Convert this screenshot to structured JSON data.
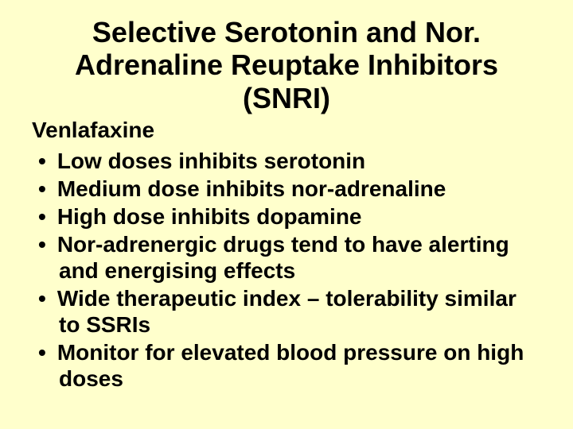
{
  "slide": {
    "background_color": "#ffffcc",
    "text_color": "#000000",
    "font_family": "Arial",
    "title": "Selective Serotonin and Nor. Adrenaline Reuptake Inhibitors (SNRI)",
    "title_fontsize": 36,
    "subtitle": "Venlafaxine",
    "subtitle_fontsize": 28,
    "bullet_fontsize": 28,
    "bullets": [
      "Low doses inhibits serotonin",
      "Medium dose inhibits nor-adrenaline",
      "High dose inhibits dopamine",
      "Nor-adrenergic drugs tend to have alerting and energising effects",
      "Wide therapeutic index – tolerability similar to SSRIs",
      "Monitor for elevated blood pressure on high doses"
    ]
  }
}
